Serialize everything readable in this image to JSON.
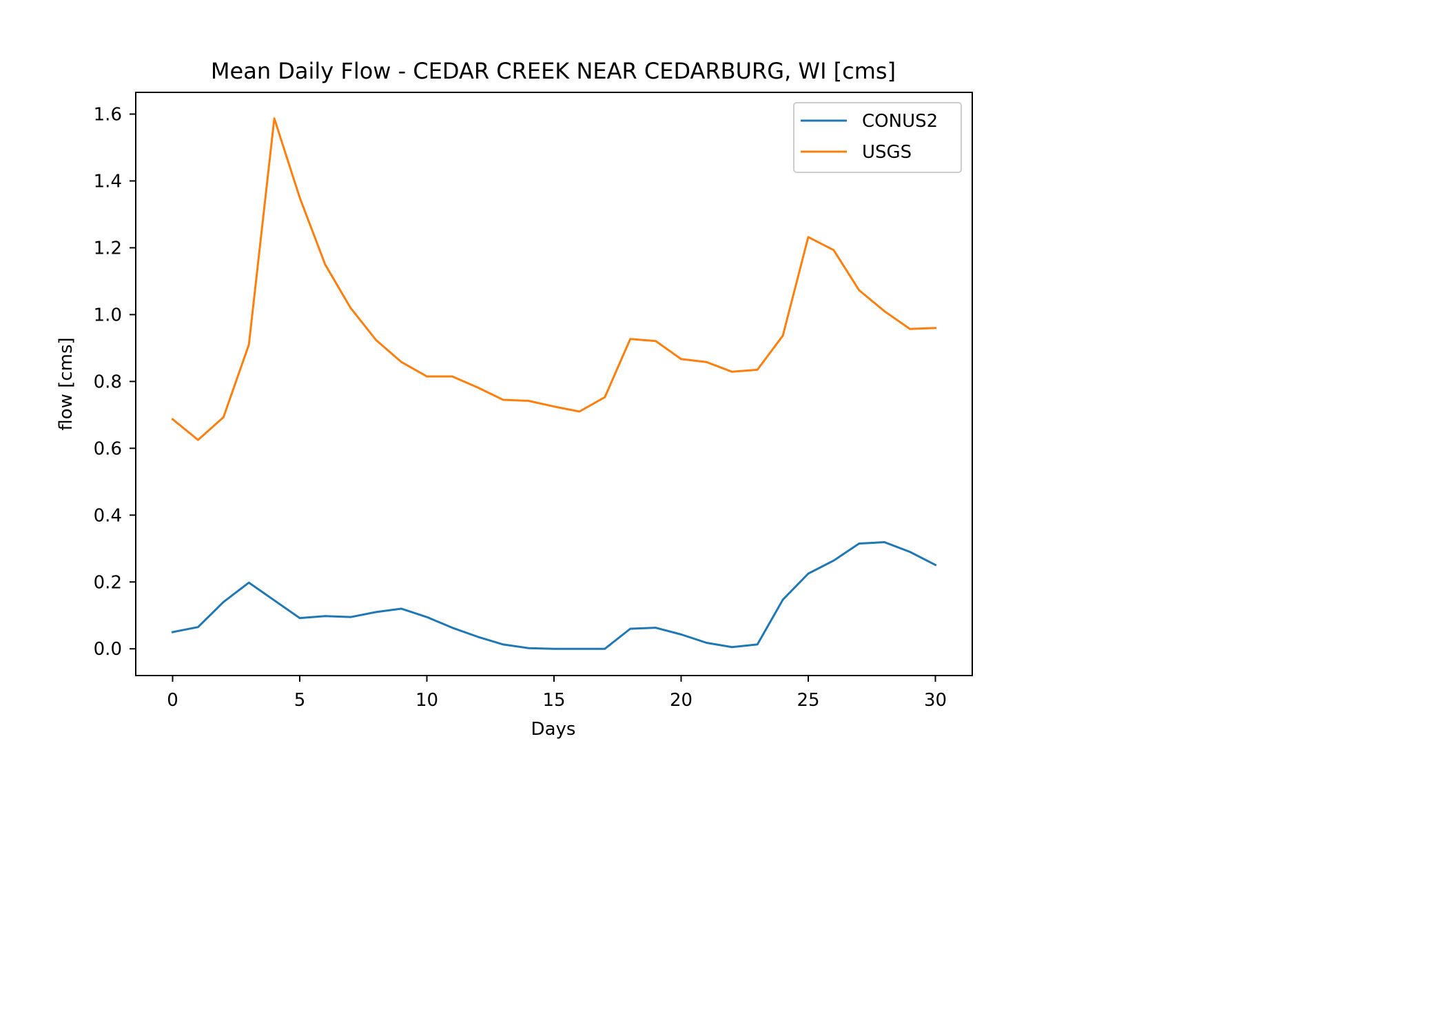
{
  "chart_data": {
    "type": "line",
    "title": "Mean Daily Flow - CEDAR CREEK NEAR CEDARBURG, WI [cms]",
    "xlabel": "Days",
    "ylabel": "flow [cms]",
    "xlim": [
      -1.45,
      31.45
    ],
    "ylim": [
      -0.08,
      1.665
    ],
    "xticks": [
      0,
      5,
      10,
      15,
      20,
      25,
      30
    ],
    "xtick_labels": [
      "0",
      "5",
      "10",
      "15",
      "20",
      "25",
      "30"
    ],
    "yticks": [
      0.0,
      0.2,
      0.4,
      0.6,
      0.8,
      1.0,
      1.2,
      1.4,
      1.6
    ],
    "ytick_labels": [
      "0.0",
      "0.2",
      "0.4",
      "0.6",
      "0.8",
      "1.0",
      "1.2",
      "1.4",
      "1.6"
    ],
    "grid": false,
    "legend_position": "top-right",
    "x": [
      0,
      1,
      2,
      3,
      4,
      5,
      6,
      7,
      8,
      9,
      10,
      11,
      12,
      13,
      14,
      15,
      16,
      17,
      18,
      19,
      20,
      21,
      22,
      23,
      24,
      25,
      26,
      27,
      28,
      29,
      30
    ],
    "series": [
      {
        "name": "CONUS2",
        "color": "#1f77b4",
        "values": [
          0.05,
          0.065,
          0.14,
          0.198,
          0.145,
          0.092,
          0.098,
          0.095,
          0.11,
          0.12,
          0.095,
          0.063,
          0.036,
          0.013,
          0.002,
          0.0,
          0.0,
          0.0,
          0.06,
          0.063,
          0.043,
          0.018,
          0.005,
          0.013,
          0.147,
          0.225,
          0.264,
          0.315,
          0.319,
          0.29,
          0.251
        ]
      },
      {
        "name": "USGS",
        "color": "#ff7f0e",
        "values": [
          0.687,
          0.625,
          0.693,
          0.91,
          1.587,
          1.35,
          1.15,
          1.02,
          0.924,
          0.858,
          0.815,
          0.815,
          0.782,
          0.745,
          0.742,
          0.725,
          0.71,
          0.753,
          0.927,
          0.921,
          0.867,
          0.858,
          0.829,
          0.835,
          0.937,
          1.232,
          1.193,
          1.073,
          1.01,
          0.957,
          0.96
        ]
      }
    ]
  }
}
